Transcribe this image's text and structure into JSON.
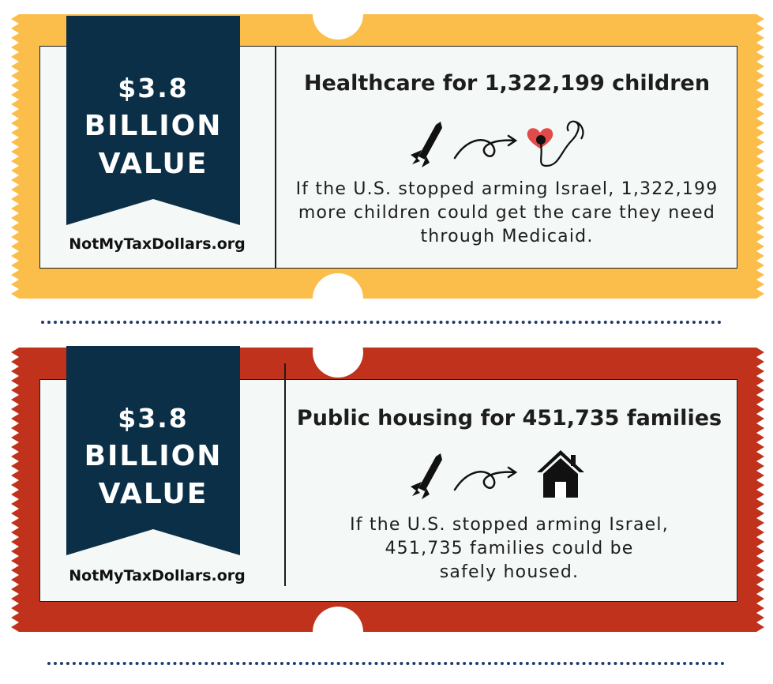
{
  "tickets": [
    {
      "color": "#fbbe4a",
      "ribbon_color": "#0b2f47",
      "value_amount": "$3.8",
      "value_line2": "BILLION",
      "value_line3": "VALUE",
      "site": "NotMyTaxDollars.org",
      "headline": "Healthcare for 1,322,199 children",
      "body_lines": [
        "If the U.S. stopped arming Israel, 1,322,199",
        "more children could get the care they need",
        "through Medicaid."
      ],
      "icons": [
        "missile-icon",
        "curly-arrow-icon",
        "heart-stethoscope-icon"
      ]
    },
    {
      "color": "#c0321b",
      "ribbon_color": "#0b2f47",
      "value_amount": "$3.8",
      "value_line2": "BILLION",
      "value_line3": "VALUE",
      "site": "NotMyTaxDollars.org",
      "headline": "Public housing for 451,735 families",
      "body_lines": [
        "If the U.S. stopped arming Israel,",
        "451,735 families could be",
        "safely housed."
      ],
      "icons": [
        "missile-icon",
        "curly-arrow-icon",
        "house-icon"
      ]
    }
  ]
}
